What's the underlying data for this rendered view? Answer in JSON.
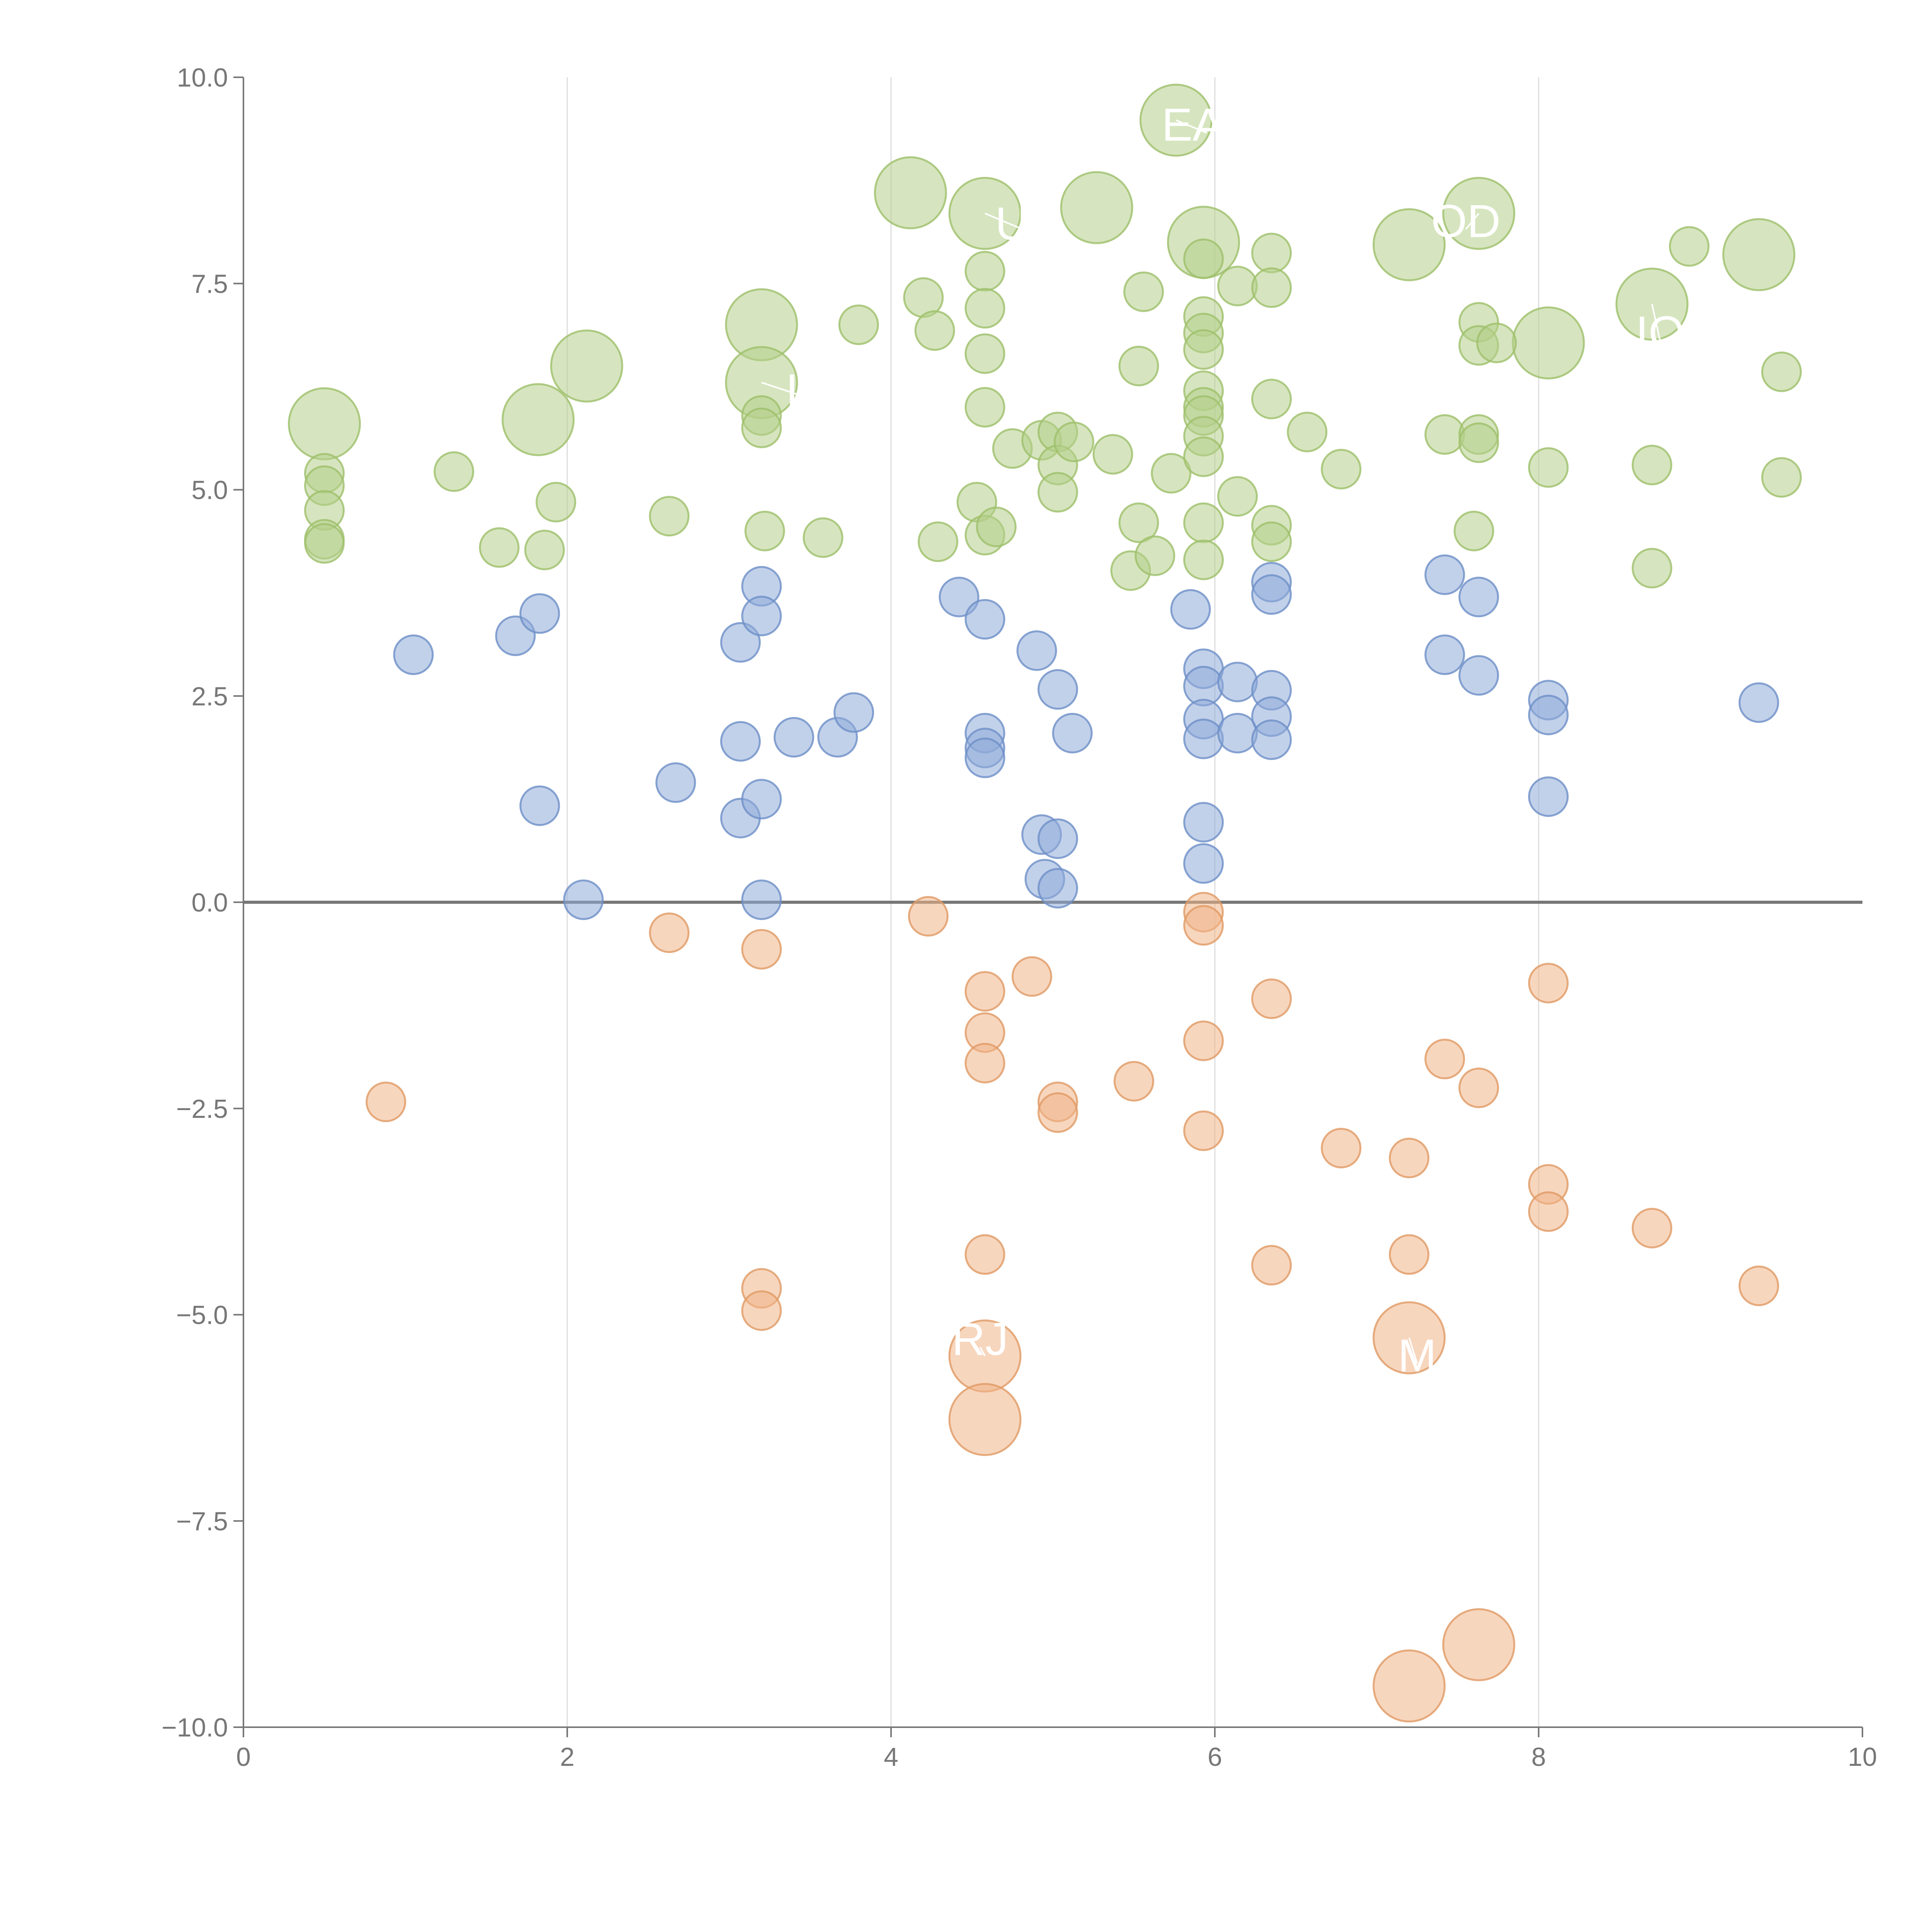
{
  "colors": {
    "background": "#ffffff",
    "positive_high": "#b5d08a",
    "positive_high_stroke": "#9ebf6a",
    "positive_low": "#8fabd8",
    "positive_low_stroke": "#6d8fc7",
    "negative": "#f0b488",
    "negative_stroke": "#e09a64",
    "axis": "#777777",
    "grid": "#dddddd"
  },
  "chart_data": {
    "type": "scatter",
    "title": "",
    "xlabel": "",
    "ylabel": "",
    "xlim": [
      0,
      10
    ],
    "ylim": [
      -10,
      10
    ],
    "x_ticks": [
      0,
      2,
      4,
      6,
      8,
      10
    ],
    "x_tick_labels": [
      "0",
      "2",
      "4",
      "6",
      "8",
      "10"
    ],
    "y_ticks": [
      10,
      7.5,
      5,
      2.5,
      0,
      -2.5,
      -5,
      -7.5,
      -10
    ],
    "y_tick_labels": [
      "10.0",
      "7.5",
      "5.0",
      "2.5",
      "0.0",
      "−2.5",
      "−5.0",
      "−7.5",
      "−10.0"
    ],
    "grid": {
      "x": true,
      "y": false
    },
    "zero_line": true,
    "series": [
      {
        "name": "high",
        "color_key": "positive_high",
        "points": [
          [
            0.5,
            5.8,
            2
          ],
          [
            0.5,
            5.2,
            1
          ],
          [
            0.5,
            5.05,
            1
          ],
          [
            0.5,
            4.75,
            1
          ],
          [
            0.5,
            4.4,
            1
          ],
          [
            0.5,
            4.35,
            1
          ],
          [
            1.3,
            5.22,
            1
          ],
          [
            1.58,
            4.3,
            1
          ],
          [
            1.82,
            5.85,
            2
          ],
          [
            1.86,
            4.27,
            1
          ],
          [
            1.93,
            4.85,
            1
          ],
          [
            2.12,
            6.5,
            2
          ],
          [
            2.63,
            4.68,
            1
          ],
          [
            3.2,
            7.0,
            2
          ],
          [
            3.2,
            6.3,
            2
          ],
          [
            3.2,
            5.9,
            1
          ],
          [
            3.2,
            5.75,
            1
          ],
          [
            3.22,
            4.5,
            1
          ],
          [
            3.58,
            4.42,
            1
          ],
          [
            3.8,
            7.0,
            1
          ],
          [
            4.12,
            8.6,
            2
          ],
          [
            4.2,
            7.33,
            1
          ],
          [
            4.27,
            6.93,
            1
          ],
          [
            4.29,
            4.37,
            1
          ],
          [
            4.53,
            4.85,
            1
          ],
          [
            4.58,
            8.35,
            2
          ],
          [
            4.58,
            7.65,
            1
          ],
          [
            4.58,
            7.2,
            1
          ],
          [
            4.58,
            6.65,
            1
          ],
          [
            4.58,
            6.0,
            1
          ],
          [
            4.58,
            4.45,
            1
          ],
          [
            4.65,
            4.55,
            1
          ],
          [
            4.75,
            5.5,
            1
          ],
          [
            4.93,
            5.6,
            1
          ],
          [
            5.03,
            5.7,
            1
          ],
          [
            5.03,
            5.3,
            1
          ],
          [
            5.03,
            4.97,
            1
          ],
          [
            5.13,
            5.58,
            1
          ],
          [
            5.27,
            8.42,
            2
          ],
          [
            5.37,
            5.43,
            1
          ],
          [
            5.48,
            4.02,
            1
          ],
          [
            5.53,
            6.5,
            1
          ],
          [
            5.53,
            4.6,
            1
          ],
          [
            5.56,
            7.4,
            1
          ],
          [
            5.63,
            4.2,
            1
          ],
          [
            5.73,
            5.2,
            1
          ],
          [
            5.76,
            9.48,
            2
          ],
          [
            5.93,
            8.0,
            2
          ],
          [
            5.93,
            7.8,
            1
          ],
          [
            5.93,
            7.1,
            1
          ],
          [
            5.93,
            6.9,
            1
          ],
          [
            5.93,
            6.7,
            1
          ],
          [
            5.93,
            6.2,
            1
          ],
          [
            5.93,
            6.0,
            1
          ],
          [
            5.93,
            5.9,
            1
          ],
          [
            5.93,
            5.65,
            1
          ],
          [
            5.93,
            5.4,
            1
          ],
          [
            5.93,
            4.6,
            1
          ],
          [
            5.93,
            4.15,
            1
          ],
          [
            6.14,
            7.47,
            1
          ],
          [
            6.14,
            4.92,
            1
          ],
          [
            6.35,
            7.87,
            1
          ],
          [
            6.35,
            7.45,
            1
          ],
          [
            6.35,
            6.1,
            1
          ],
          [
            6.35,
            4.57,
            1
          ],
          [
            6.35,
            4.37,
            1
          ],
          [
            6.57,
            5.7,
            1
          ],
          [
            6.78,
            5.25,
            1
          ],
          [
            7.2,
            7.97,
            2
          ],
          [
            7.42,
            5.67,
            1
          ],
          [
            7.63,
            8.35,
            2
          ],
          [
            7.63,
            7.03,
            1
          ],
          [
            7.63,
            6.75,
            1
          ],
          [
            7.63,
            5.67,
            1
          ],
          [
            7.63,
            5.57,
            1
          ],
          [
            7.74,
            6.78,
            1
          ],
          [
            7.6,
            4.5,
            1
          ],
          [
            8.06,
            6.78,
            2
          ],
          [
            8.06,
            5.27,
            1
          ],
          [
            8.7,
            7.25,
            2
          ],
          [
            8.7,
            5.3,
            1
          ],
          [
            8.7,
            4.05,
            1
          ],
          [
            8.93,
            7.95,
            1
          ],
          [
            9.36,
            7.85,
            2
          ],
          [
            9.5,
            6.43,
            1
          ],
          [
            9.5,
            5.15,
            1
          ]
        ]
      },
      {
        "name": "low",
        "color_key": "positive_low",
        "points": [
          [
            1.05,
            3.0,
            1
          ],
          [
            1.68,
            3.23,
            1
          ],
          [
            1.83,
            3.5,
            1
          ],
          [
            1.83,
            1.17,
            1
          ],
          [
            2.1,
            0.03,
            1
          ],
          [
            2.67,
            1.45,
            1
          ],
          [
            3.07,
            3.15,
            1
          ],
          [
            3.07,
            1.95,
            1
          ],
          [
            3.07,
            1.02,
            1
          ],
          [
            3.2,
            3.83,
            1
          ],
          [
            3.2,
            3.47,
            1
          ],
          [
            3.2,
            1.25,
            1
          ],
          [
            3.2,
            0.03,
            1
          ],
          [
            3.4,
            2.0,
            1
          ],
          [
            3.67,
            2.0,
            1
          ],
          [
            3.77,
            2.3,
            1
          ],
          [
            4.42,
            3.7,
            1
          ],
          [
            4.58,
            3.43,
            1
          ],
          [
            4.58,
            2.05,
            1
          ],
          [
            4.58,
            1.87,
            1
          ],
          [
            4.58,
            1.75,
            1
          ],
          [
            4.9,
            3.05,
            1
          ],
          [
            4.93,
            0.82,
            1
          ],
          [
            4.95,
            0.28,
            1
          ],
          [
            5.03,
            2.58,
            1
          ],
          [
            5.03,
            0.77,
            1
          ],
          [
            5.03,
            0.17,
            1
          ],
          [
            5.12,
            2.05,
            1
          ],
          [
            5.85,
            3.55,
            1
          ],
          [
            5.93,
            2.83,
            1
          ],
          [
            5.93,
            2.62,
            1
          ],
          [
            5.93,
            2.22,
            1
          ],
          [
            5.93,
            1.98,
            1
          ],
          [
            5.93,
            0.97,
            1
          ],
          [
            5.93,
            0.47,
            1
          ],
          [
            6.14,
            2.67,
            1
          ],
          [
            6.14,
            2.05,
            1
          ],
          [
            6.35,
            3.88,
            1
          ],
          [
            6.35,
            3.73,
            1
          ],
          [
            6.35,
            2.57,
            1
          ],
          [
            6.35,
            2.25,
            1
          ],
          [
            6.35,
            1.97,
            1
          ],
          [
            7.42,
            3.97,
            1
          ],
          [
            7.42,
            3.0,
            1
          ],
          [
            7.63,
            3.7,
            1
          ],
          [
            7.63,
            2.75,
            1
          ],
          [
            8.06,
            2.45,
            1
          ],
          [
            8.06,
            2.27,
            1
          ],
          [
            8.06,
            1.28,
            1
          ],
          [
            9.36,
            2.42,
            1
          ]
        ]
      },
      {
        "name": "negative",
        "color_key": "negative",
        "points": [
          [
            0.88,
            -2.42,
            1
          ],
          [
            2.63,
            -0.37,
            1
          ],
          [
            3.2,
            -0.57,
            1
          ],
          [
            3.2,
            -4.68,
            1
          ],
          [
            3.2,
            -4.95,
            1
          ],
          [
            4.23,
            -0.17,
            1
          ],
          [
            4.58,
            -1.08,
            1
          ],
          [
            4.58,
            -1.58,
            1
          ],
          [
            4.58,
            -1.95,
            1
          ],
          [
            4.58,
            -4.27,
            1
          ],
          [
            4.58,
            -5.5,
            2
          ],
          [
            4.58,
            -6.27,
            2
          ],
          [
            4.87,
            -0.9,
            1
          ],
          [
            5.03,
            -2.42,
            1
          ],
          [
            5.03,
            -2.55,
            1
          ],
          [
            5.5,
            -2.17,
            1
          ],
          [
            5.93,
            -0.12,
            1
          ],
          [
            5.93,
            -0.28,
            1
          ],
          [
            5.93,
            -1.68,
            1
          ],
          [
            5.93,
            -2.77,
            1
          ],
          [
            6.35,
            -1.17,
            1
          ],
          [
            6.35,
            -4.4,
            1
          ],
          [
            6.78,
            -2.98,
            1
          ],
          [
            7.2,
            -3.1,
            1
          ],
          [
            7.2,
            -4.27,
            1
          ],
          [
            7.2,
            -5.28,
            2
          ],
          [
            7.2,
            -9.5,
            2
          ],
          [
            7.42,
            -1.9,
            1
          ],
          [
            7.63,
            -2.25,
            1
          ],
          [
            7.63,
            -9.0,
            2
          ],
          [
            8.06,
            -0.98,
            1
          ],
          [
            8.06,
            -3.42,
            1
          ],
          [
            8.06,
            -3.75,
            1
          ],
          [
            8.7,
            -3.95,
            1
          ],
          [
            9.36,
            -4.65,
            1
          ]
        ]
      }
    ],
    "annotations": [
      {
        "text": "EAF",
        "x": 5.95,
        "y": 9.42,
        "px": 5.76,
        "py": 9.48
      },
      {
        "text": "UN",
        "x": 4.85,
        "y": 8.22,
        "px": 4.58,
        "py": 8.35
      },
      {
        "text": "OD",
        "x": 7.55,
        "y": 8.25,
        "px": 7.63,
        "py": 8.35
      },
      {
        "text": "IO",
        "x": 3.5,
        "y": 6.2,
        "px": 3.2,
        "py": 6.3
      },
      {
        "text": "IO",
        "x": 8.75,
        "y": 6.9,
        "px": 8.7,
        "py": 7.25
      },
      {
        "text": "RJ",
        "x": 4.55,
        "y": -5.3,
        "px": 4.58,
        "py": -5.5
      },
      {
        "text": "M",
        "x": 7.25,
        "y": -5.5,
        "px": 7.2,
        "py": -5.28
      }
    ]
  }
}
